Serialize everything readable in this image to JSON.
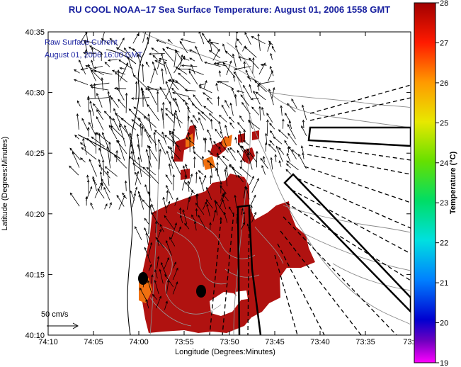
{
  "title": "RU COOL  NOAA–17  Sea Surface Temperature:  August 01, 2006 1558 GMT",
  "legend": {
    "line1": "Raw Surface Current",
    "line2": "August 01, 2006 16:00 GMT",
    "scale_label": "50 cm/s"
  },
  "axes": {
    "xlabel": "Longitude (Degrees:Minutes)",
    "ylabel": "Latitude (Degrees:Minutes)",
    "xticks": [
      "74:10",
      "74:05",
      "74:00",
      "73:55",
      "73:50",
      "73:45",
      "73:40",
      "73:35",
      "73:3"
    ],
    "yticks": [
      "40:35",
      "40:30",
      "40:25",
      "40:20",
      "40:15",
      "40:10"
    ]
  },
  "colorbar": {
    "title": "Temperature (°C)",
    "ticks": [
      "28",
      "27",
      "26",
      "25",
      "24",
      "23",
      "22",
      "21",
      "20",
      "19"
    ],
    "min": 19,
    "max": 28
  },
  "colors": {
    "title": "#1a22a0",
    "sst_warm": "#b01210",
    "sst_orange": "#f07010",
    "vectors": "#000000",
    "contours": "#999999"
  }
}
